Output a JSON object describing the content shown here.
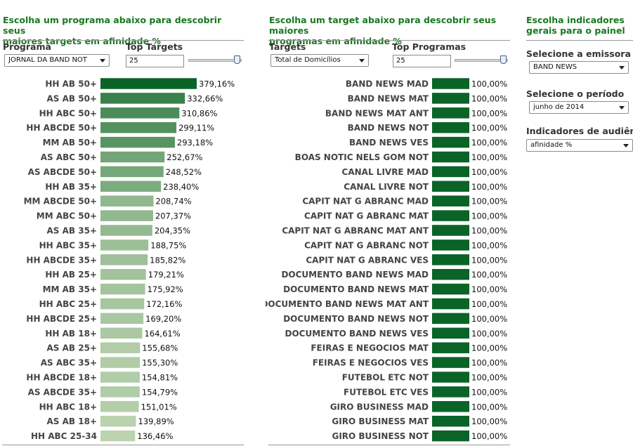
{
  "panel1": {
    "title_line1": "Escolha um programa abaixo para descobrir seus",
    "title_line2": "maiores targets em afinidade %",
    "program_label": "Programa",
    "program_value": "JORNAL DA BAND NOT",
    "top_label": "Top Targets",
    "top_value": "25"
  },
  "panel2": {
    "title_line1": "Escolha um target abaixo para descobrir seus maiores",
    "title_line2": "programas em afinidade %",
    "target_label": "Targets",
    "target_value": "Total de Domicílios",
    "top_label": "Top Programas",
    "top_value": "25"
  },
  "panel3": {
    "title_line1": "Escolha indicadores",
    "title_line2": "gerais para o painel",
    "emissora_label": "Selecione a emissora",
    "emissora_value": "BAND NEWS",
    "periodo_label": "Selecione o período",
    "periodo_value": "junho de 2014",
    "indicador_label": "Indicadores de audiência",
    "indicador_value": "afinidade %"
  },
  "colors": {
    "title_green": "#17791f",
    "bar_dark": "#0a6327",
    "bar_light": "#bcd3b0"
  },
  "chart_data": [
    {
      "type": "bar",
      "orientation": "horizontal",
      "categories": [
        "HH AB 50+",
        "AS AB 50+",
        "HH ABC 50+",
        "HH ABCDE 50+",
        "MM AB 50+",
        "AS ABC 50+",
        "AS ABCDE 50+",
        "HH AB 35+",
        "MM ABCDE 50+",
        "MM ABC 50+",
        "AS AB 35+",
        "HH ABC 35+",
        "HH ABCDE 35+",
        "HH AB 25+",
        "MM AB 35+",
        "HH ABC 25+",
        "HH ABCDE 25+",
        "HH AB 18+",
        "AS AB 25+",
        "AS ABC 35+",
        "HH ABCDE 18+",
        "AS ABCDE 35+",
        "HH ABC 18+",
        "AS AB 18+",
        "HH ABC 25-34"
      ],
      "values": [
        379.16,
        332.66,
        310.86,
        299.11,
        293.18,
        252.67,
        248.52,
        238.4,
        208.74,
        207.37,
        204.35,
        188.75,
        185.82,
        179.21,
        175.92,
        172.16,
        169.2,
        164.61,
        155.68,
        155.3,
        154.81,
        154.79,
        151.01,
        139.89,
        136.46
      ],
      "value_labels": [
        "379,16%",
        "332,66%",
        "310,86%",
        "299,11%",
        "293,18%",
        "252,67%",
        "248,52%",
        "238,40%",
        "208,74%",
        "207,37%",
        "204,35%",
        "188,75%",
        "185,82%",
        "179,21%",
        "175,92%",
        "172,16%",
        "169,20%",
        "164,61%",
        "155,68%",
        "155,30%",
        "154,81%",
        "154,79%",
        "151,01%",
        "139,89%",
        "136,46%"
      ],
      "xlim": [
        0,
        379.16
      ],
      "color_scale": "dark green to light green by value"
    },
    {
      "type": "bar",
      "orientation": "horizontal",
      "categories": [
        "BAND NEWS MAD",
        "BAND NEWS MAT",
        "BAND NEWS MAT ANT",
        "BAND NEWS NOT",
        "BAND NEWS VES",
        "BOAS NOTIC NELS GOM NOT",
        "CANAL LIVRE MAD",
        "CANAL LIVRE NOT",
        "CAPIT NAT G ABRANC MAD",
        "CAPIT NAT G ABRANC MAT",
        "CAPIT NAT G ABRANC MAT ANT",
        "CAPIT NAT G ABRANC NOT",
        "CAPIT NAT G ABRANC VES",
        "DOCUMENTO BAND NEWS MAD",
        "DOCUMENTO BAND NEWS MAT",
        "DOCUMENTO BAND NEWS MAT ANT",
        "DOCUMENTO BAND NEWS NOT",
        "DOCUMENTO BAND NEWS VES",
        "FEIRAS E NEGOCIOS MAT",
        "FEIRAS E NEGOCIOS VES",
        "FUTEBOL ETC NOT",
        "FUTEBOL ETC VES",
        "GIRO BUSINESS MAD",
        "GIRO BUSINESS MAT",
        "GIRO BUSINESS NOT"
      ],
      "values": [
        100,
        100,
        100,
        100,
        100,
        100,
        100,
        100,
        100,
        100,
        100,
        100,
        100,
        100,
        100,
        100,
        100,
        100,
        100,
        100,
        100,
        100,
        100,
        100,
        100
      ],
      "value_labels": [
        "100,00%",
        "100,00%",
        "100,00%",
        "100,00%",
        "100,00%",
        "100,00%",
        "100,00%",
        "100,00%",
        "100,00%",
        "100,00%",
        "100,00%",
        "100,00%",
        "100,00%",
        "100,00%",
        "100,00%",
        "100,00%",
        "100,00%",
        "100,00%",
        "100,00%",
        "100,00%",
        "100,00%",
        "100,00%",
        "100,00%",
        "100,00%",
        "100,00%"
      ],
      "xlim": [
        0,
        100
      ]
    }
  ]
}
